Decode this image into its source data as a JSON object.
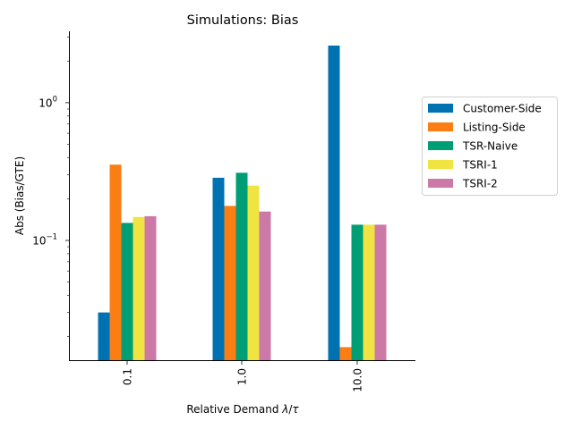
{
  "chart_data": {
    "type": "bar",
    "title": "Simulations: Bias",
    "xlabel_prefix": "Relative Demand ",
    "xlabel_lambda": "λ",
    "xlabel_slash": "/",
    "xlabel_tau": "τ",
    "ylabel": "Abs (Bias/GTE)",
    "yscale": "log",
    "ylim": [
      0.0135,
      3.3
    ],
    "y_major_ticks": [
      {
        "value": 0.1,
        "base": "10",
        "exp": "−1"
      },
      {
        "value": 1.0,
        "base": "10",
        "exp": "0"
      }
    ],
    "categories": [
      "0.1",
      "1.0",
      "10.0"
    ],
    "series": [
      {
        "name": "Customer-Side",
        "color": "#0072b2",
        "values": [
          0.03,
          0.285,
          2.6
        ]
      },
      {
        "name": "Listing-Side",
        "color": "#fb7e15",
        "values": [
          0.355,
          0.178,
          0.0168
        ]
      },
      {
        "name": "TSR-Naive",
        "color": "#009e74",
        "values": [
          0.134,
          0.31,
          0.13
        ]
      },
      {
        "name": "TSRI-1",
        "color": "#f0e442",
        "values": [
          0.148,
          0.25,
          0.13
        ]
      },
      {
        "name": "TSRI-2",
        "color": "#cc79a7",
        "values": [
          0.15,
          0.162,
          0.13
        ]
      }
    ],
    "legend_position": "right",
    "grid": false
  }
}
